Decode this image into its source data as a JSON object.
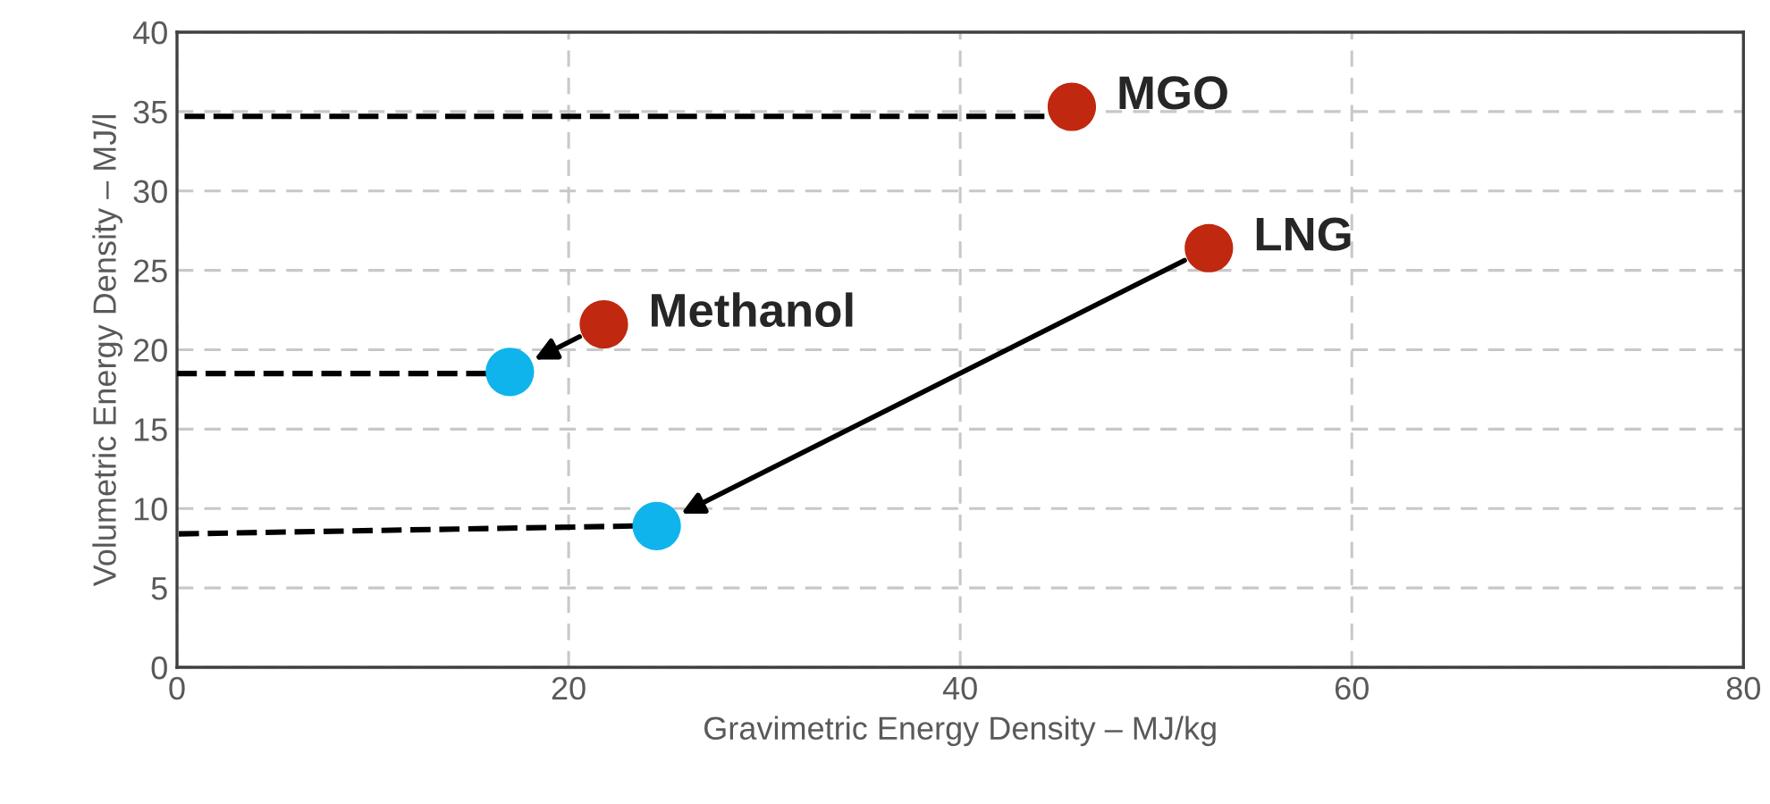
{
  "chart_data": {
    "type": "scatter",
    "xlabel": "Gravimetric Energy Density – MJ/kg",
    "ylabel": "Volumetric Energy Density – MJ/l",
    "xlim": [
      0,
      80
    ],
    "ylim": [
      0,
      40
    ],
    "xticks": [
      0,
      20,
      40,
      60,
      80
    ],
    "yticks": [
      0,
      5,
      10,
      15,
      20,
      25,
      30,
      35,
      40
    ],
    "grid": true,
    "series": [
      {
        "type": "line",
        "color": "#000000",
        "line_style": "dashed",
        "x": [
          44.3,
          0
        ],
        "values": [
          34.7,
          34.7
        ],
        "marker": "none"
      },
      {
        "type": "line",
        "color": "#000000",
        "line_style": "dashed",
        "x": [
          15.8,
          0
        ],
        "values": [
          18.5,
          18.5
        ],
        "marker": "none"
      },
      {
        "type": "line",
        "color": "#000000",
        "line_style": "dashed",
        "x": [
          23.3,
          0
        ],
        "values": [
          8.9,
          8.4
        ],
        "marker": "none"
      },
      {
        "marker": "circle",
        "color": "#c0280f",
        "x": [
          21.8,
          52.7,
          45.7
        ],
        "values": [
          21.6,
          26.4,
          35.3
        ]
      },
      {
        "marker": "circle",
        "color": "#0fb4ec",
        "x": [
          17.0,
          24.5
        ],
        "values": [
          18.6,
          8.9
        ]
      }
    ],
    "annotations": [
      {
        "text": "MGO",
        "x": 45.7,
        "y": 35.3
      },
      {
        "text": "Methanol",
        "x": 21.8,
        "y": 21.6
      },
      {
        "text": "LNG",
        "x": 52.7,
        "y": 26.4
      }
    ]
  }
}
